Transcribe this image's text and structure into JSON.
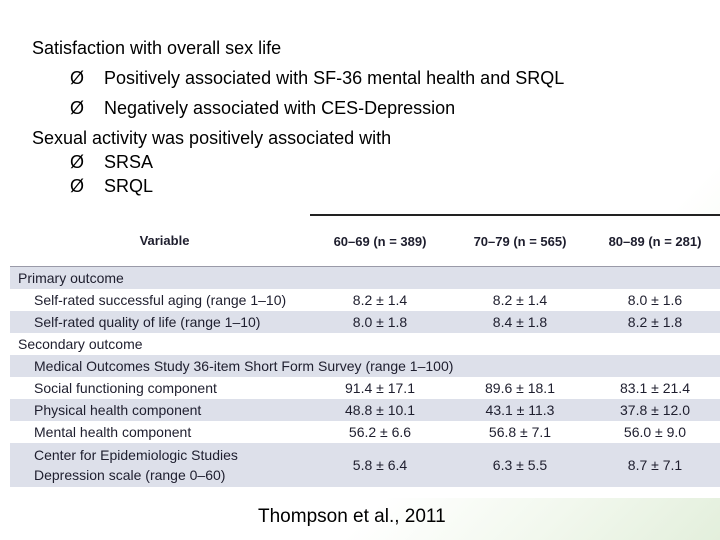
{
  "bullets": {
    "heading1": "Satisfaction with overall sex life",
    "arrow": "Ø",
    "h1_items": [
      "Positively associated with SF-36 mental health and SRQL",
      "Negatively associated with CES-Depression"
    ],
    "heading2": "Sexual activity was positively associated with",
    "h2_items": [
      "SRSA",
      "SRQL"
    ]
  },
  "table": {
    "headers": [
      "Variable",
      "60–69 (n = 389)",
      "70–79 (n = 565)",
      "80–89 (n = 281)"
    ],
    "rows": [
      {
        "label": "Primary outcome",
        "values": [
          "",
          "",
          ""
        ]
      },
      {
        "label": "Self-rated successful aging (range 1–10)",
        "values": [
          "8.2 ± 1.4",
          "8.2 ± 1.4",
          "8.0 ± 1.6"
        ]
      },
      {
        "label": "Self-rated quality of life (range 1–10)",
        "values": [
          "8.0 ± 1.8",
          "8.4 ± 1.8",
          "8.2 ± 1.8"
        ]
      },
      {
        "label": "Secondary outcome",
        "values": [
          "",
          "",
          ""
        ]
      },
      {
        "label": "Medical Outcomes Study 36-item Short Form Survey (range 1–100)",
        "values": [
          "",
          "",
          ""
        ]
      },
      {
        "label": "Social functioning component",
        "values": [
          "91.4 ± 17.1",
          "89.6 ± 18.1",
          "83.1 ± 21.4"
        ]
      },
      {
        "label": "Physical health component",
        "values": [
          "48.8 ± 10.1",
          "43.1 ± 11.3",
          "37.8 ± 12.0"
        ]
      },
      {
        "label": "Mental health component",
        "values": [
          "56.2 ± 6.6",
          "56.8 ± 7.1",
          "56.0 ± 9.0"
        ]
      },
      {
        "label": "Center for Epidemiologic Studies Depression scale (range 0–60)",
        "values": [
          "5.8 ± 6.4",
          "6.3 ± 5.5",
          "8.7 ± 7.1"
        ]
      }
    ]
  },
  "citation": "Thompson et al., 2011"
}
